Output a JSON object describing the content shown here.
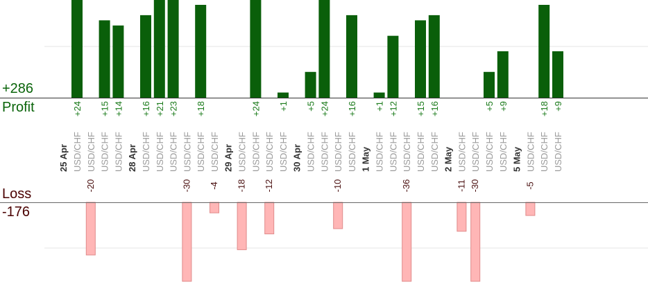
{
  "summary": {
    "profit_total": "+286",
    "profit_label": "Profit",
    "loss_label": "Loss",
    "loss_total": "-176"
  },
  "chart_data": {
    "type": "bar",
    "title": "",
    "xlabel": "",
    "ylabel": "",
    "grid": true,
    "legend": "none",
    "colors": {
      "profit_fill": "#0a5f0a",
      "profit_label": "#1a7a1a",
      "loss_fill": "#ffb6b6",
      "loss_stroke": "#e08a8a",
      "loss_label": "#4a1010",
      "category_label": "#9a9a9a",
      "date_label": "#333333",
      "axis": "#333333",
      "grid": "#e6e6e6"
    },
    "profit_scale_max": 18,
    "loss_scale_max": 30,
    "categories": [
      {
        "date": "25 Apr",
        "label": "USD/CHF",
        "value": 24
      },
      {
        "date": "",
        "label": "USD/CHF",
        "value": -20
      },
      {
        "date": "",
        "label": "USD/CHF",
        "value": 15
      },
      {
        "date": "",
        "label": "USD/CHF",
        "value": 14
      },
      {
        "date": "",
        "label": "",
        "value": null
      },
      {
        "date": "28 Apr",
        "label": "USD/CHF",
        "value": 16
      },
      {
        "date": "",
        "label": "USD/CHF",
        "value": 21
      },
      {
        "date": "",
        "label": "USD/CHF",
        "value": 23
      },
      {
        "date": "",
        "label": "USD/CHF",
        "value": -30
      },
      {
        "date": "",
        "label": "USD/CHF",
        "value": 18
      },
      {
        "date": "",
        "label": "USD/CHF",
        "value": -4
      },
      {
        "date": "",
        "label": "",
        "value": null
      },
      {
        "date": "29 Apr",
        "label": "USD/CHF",
        "value": -18
      },
      {
        "date": "",
        "label": "USD/CHF",
        "value": 24
      },
      {
        "date": "",
        "label": "USD/CHF",
        "value": -12
      },
      {
        "date": "",
        "label": "USD/CHF",
        "value": 1
      },
      {
        "date": "",
        "label": "",
        "value": null
      },
      {
        "date": "30 Apr",
        "label": "USD/CHF",
        "value": 5
      },
      {
        "date": "",
        "label": "USD/CHF",
        "value": 24
      },
      {
        "date": "",
        "label": "USD/CHF",
        "value": -10
      },
      {
        "date": "",
        "label": "USD/CHF",
        "value": 16
      },
      {
        "date": "",
        "label": "",
        "value": null
      },
      {
        "date": "1 May",
        "label": "USD/CHF",
        "value": 1
      },
      {
        "date": "",
        "label": "USD/CHF",
        "value": 12
      },
      {
        "date": "",
        "label": "USD/CHF",
        "value": -36
      },
      {
        "date": "",
        "label": "USD/CHF",
        "value": 15
      },
      {
        "date": "",
        "label": "USD/CHF",
        "value": 16
      },
      {
        "date": "",
        "label": "",
        "value": null
      },
      {
        "date": "2 May",
        "label": "USD/CHF",
        "value": -11
      },
      {
        "date": "",
        "label": "USD/CHF",
        "value": -30
      },
      {
        "date": "",
        "label": "USD/CHF",
        "value": 5
      },
      {
        "date": "",
        "label": "USD/CHF",
        "value": 9
      },
      {
        "date": "",
        "label": "",
        "value": null
      },
      {
        "date": "5 May",
        "label": "USD/CHF",
        "value": -5
      },
      {
        "date": "",
        "label": "USD/CHF",
        "value": 18
      },
      {
        "date": "",
        "label": "USD/CHF",
        "value": 9
      }
    ]
  }
}
